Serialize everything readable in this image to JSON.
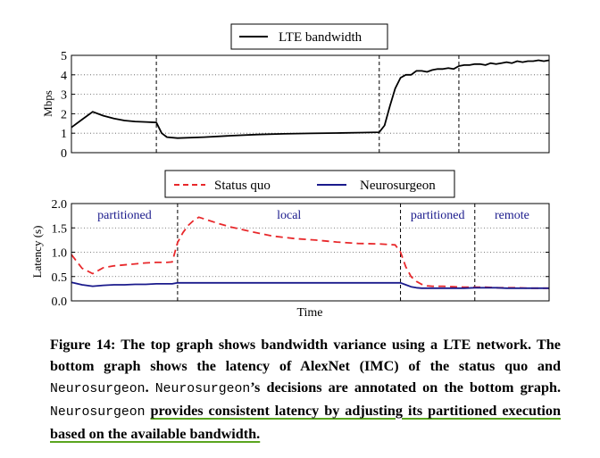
{
  "chart_data": [
    {
      "type": "line",
      "xlabel": "",
      "ylabel": "Mbps",
      "ylim": [
        0,
        5
      ],
      "y_ticks": [
        "0",
        "1",
        "2",
        "3",
        "4",
        "5"
      ],
      "grid": true,
      "legend_position": "top-center",
      "vlines": [
        16,
        58,
        73
      ],
      "x": [
        0,
        2,
        4,
        6,
        8,
        10,
        12,
        14,
        16,
        17,
        18,
        20,
        25,
        30,
        35,
        40,
        45,
        50,
        55,
        58,
        59,
        60,
        61,
        62,
        63,
        64,
        65,
        66,
        67,
        68,
        69,
        70,
        71,
        72,
        73,
        74,
        75,
        76,
        77,
        78,
        79,
        80,
        81,
        82,
        83,
        84,
        85,
        86,
        87,
        88,
        89,
        90
      ],
      "series": [
        {
          "name": "LTE bandwidth",
          "color": "#000000",
          "style": "solid",
          "values": [
            1.3,
            1.7,
            2.1,
            1.9,
            1.75,
            1.65,
            1.6,
            1.58,
            1.55,
            1.0,
            0.8,
            0.75,
            0.8,
            0.87,
            0.93,
            0.97,
            0.99,
            1.01,
            1.03,
            1.05,
            1.4,
            2.4,
            3.3,
            3.85,
            4.0,
            4.0,
            4.2,
            4.2,
            4.15,
            4.25,
            4.3,
            4.3,
            4.35,
            4.3,
            4.45,
            4.5,
            4.5,
            4.55,
            4.55,
            4.5,
            4.6,
            4.55,
            4.6,
            4.65,
            4.6,
            4.7,
            4.65,
            4.7,
            4.7,
            4.75,
            4.7,
            4.75
          ]
        }
      ]
    },
    {
      "type": "line",
      "xlabel": "Time",
      "ylabel": "Latency (s)",
      "ylim": [
        0,
        2.0
      ],
      "y_ticks": [
        "0.0",
        "0.5",
        "1.0",
        "1.5",
        "2.0"
      ],
      "grid": true,
      "legend_position": "top-center",
      "vlines": [
        20,
        62,
        76
      ],
      "regions": [
        {
          "label": "partitioned",
          "start": 0,
          "end": 20
        },
        {
          "label": "local",
          "start": 20,
          "end": 62
        },
        {
          "label": "partitioned",
          "start": 62,
          "end": 76
        },
        {
          "label": "remote",
          "start": 76,
          "end": 90
        }
      ],
      "x": [
        0,
        2,
        4,
        6,
        8,
        10,
        12,
        14,
        16,
        18,
        19,
        20,
        21,
        22,
        23,
        24,
        26,
        28,
        30,
        34,
        38,
        42,
        46,
        50,
        54,
        58,
        61,
        62,
        63,
        64,
        65,
        66,
        67,
        68,
        70,
        72,
        74,
        76,
        78,
        80,
        82,
        84,
        86,
        88,
        90
      ],
      "series": [
        {
          "name": "Status quo",
          "color": "#e8282b",
          "style": "dashed",
          "values": [
            0.95,
            0.67,
            0.56,
            0.68,
            0.72,
            0.74,
            0.76,
            0.78,
            0.79,
            0.79,
            0.8,
            1.2,
            1.4,
            1.55,
            1.65,
            1.72,
            1.65,
            1.58,
            1.52,
            1.42,
            1.33,
            1.28,
            1.25,
            1.21,
            1.18,
            1.17,
            1.15,
            1.0,
            0.7,
            0.5,
            0.4,
            0.34,
            0.31,
            0.3,
            0.3,
            0.29,
            0.28,
            0.28,
            0.28,
            0.27,
            0.27,
            0.27,
            0.26,
            0.26,
            0.26
          ]
        },
        {
          "name": "Neurosurgeon",
          "color": "#1a1a8c",
          "style": "solid",
          "values": [
            0.38,
            0.33,
            0.3,
            0.32,
            0.33,
            0.33,
            0.34,
            0.34,
            0.35,
            0.35,
            0.35,
            0.37,
            0.37,
            0.37,
            0.37,
            0.37,
            0.37,
            0.37,
            0.37,
            0.37,
            0.37,
            0.37,
            0.37,
            0.37,
            0.37,
            0.37,
            0.37,
            0.37,
            0.33,
            0.29,
            0.27,
            0.26,
            0.26,
            0.26,
            0.26,
            0.26,
            0.26,
            0.27,
            0.27,
            0.27,
            0.26,
            0.26,
            0.26,
            0.26,
            0.26
          ]
        }
      ]
    }
  ],
  "caption": {
    "p1": "Figure 14: The top graph shows bandwidth variance using a LTE network. The bottom graph shows the latency of AlexNet (IMC) of the status quo and ",
    "m1": "Neurosurgeon",
    "p2": ". ",
    "m2": "Neurosurgeon",
    "p3": "’s decisions are annotated on the bottom graph. ",
    "m3": "Neurosurgeon",
    "p4": " ",
    "hl": "provides consistent latency by adjusting its partitioned execution based on the available bandwidth."
  }
}
